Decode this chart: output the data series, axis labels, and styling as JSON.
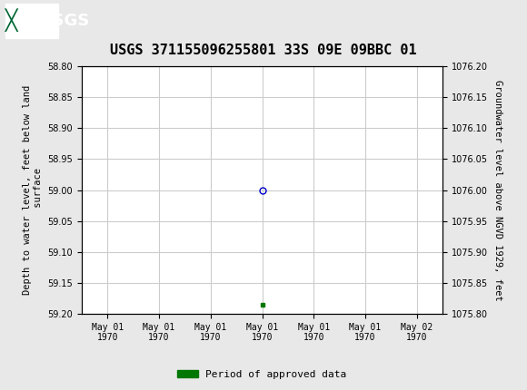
{
  "title": "USGS 371155096255801 33S 09E 09BBC 01",
  "ylabel_left": "Depth to water level, feet below land\n surface",
  "ylabel_right": "Groundwater level above NGVD 1929, feet",
  "ylim_left": [
    58.8,
    59.2
  ],
  "ylim_right": [
    1075.8,
    1076.2
  ],
  "yticks_left": [
    58.8,
    58.85,
    58.9,
    58.95,
    59.0,
    59.05,
    59.1,
    59.15,
    59.2
  ],
  "yticks_right": [
    1075.8,
    1075.85,
    1075.9,
    1075.95,
    1076.0,
    1076.05,
    1076.1,
    1076.15,
    1076.2
  ],
  "data_point_x": 3.0,
  "data_point_y": 59.0,
  "data_point_color": "#0000cc",
  "green_square_x": 3.0,
  "green_square_y": 59.185,
  "green_square_color": "#007700",
  "xtick_labels": [
    "May 01\n1970",
    "May 01\n1970",
    "May 01\n1970",
    "May 01\n1970",
    "May 01\n1970",
    "May 01\n1970",
    "May 02\n1970"
  ],
  "xtick_positions": [
    0,
    1,
    2,
    3,
    4,
    5,
    6
  ],
  "xlim": [
    -0.5,
    6.5
  ],
  "grid_color": "#cccccc",
  "background_color": "#e8e8e8",
  "plot_bg_color": "#ffffff",
  "header_bg_color": "#006633",
  "legend_label": "Period of approved data",
  "legend_color": "#007700",
  "title_fontsize": 11,
  "axis_fontsize": 7.5,
  "tick_fontsize": 7
}
